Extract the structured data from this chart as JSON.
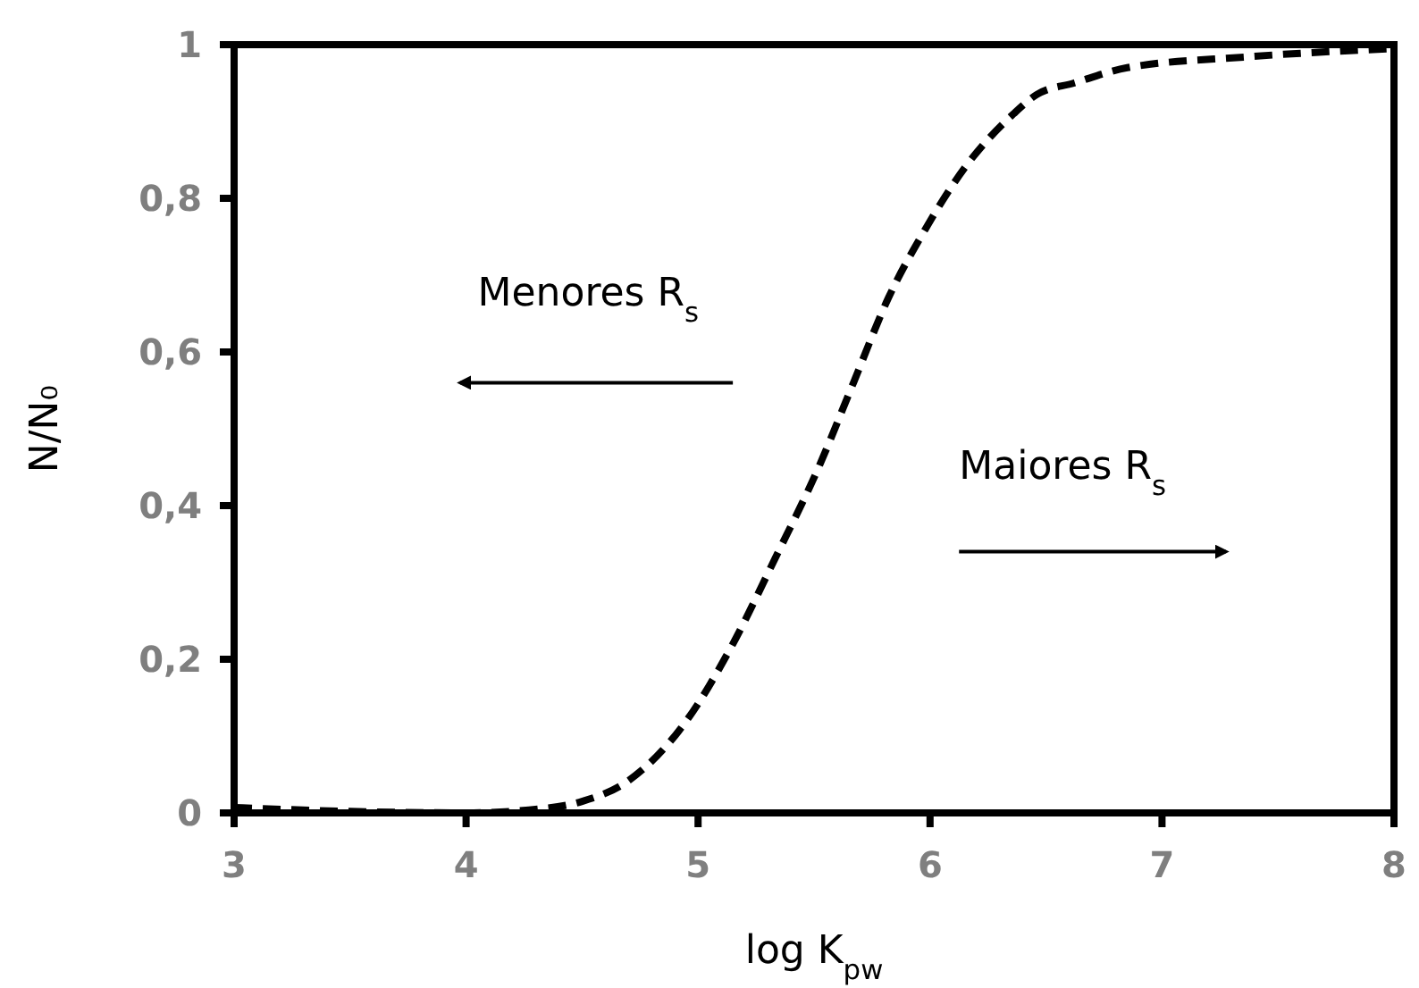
{
  "chart_data": {
    "type": "line",
    "xlabel": "log K$_{pw}$",
    "ylabel": "N/N₀",
    "x": [
      3,
      3.5,
      4,
      4.31,
      4.5,
      4.69,
      4.95,
      5.15,
      5.33,
      5.52,
      5.67,
      5.82,
      5.98,
      6.15,
      6.36,
      6.46,
      6.62,
      6.85,
      7.36,
      8
    ],
    "series": [
      {
        "color": "#000000",
        "values": [
          0.007,
          0.002,
          0,
          0.005,
          0.015,
          0.04,
          0.12,
          0.22,
          0.33,
          0.45,
          0.56,
          0.67,
          0.76,
          0.84,
          0.91,
          0.935,
          0.95,
          0.97,
          0.984,
          0.995
        ]
      }
    ],
    "xlim": [
      3,
      8
    ],
    "ylim": [
      0,
      1
    ],
    "xticks": [
      3,
      4,
      5,
      6,
      7,
      8
    ],
    "yticks": [
      0,
      {
        "value": 0.2,
        "label": "0,2"
      },
      {
        "value": 0.4,
        "label": "0,4"
      },
      {
        "value": 0.6,
        "label": "0,6"
      },
      {
        "value": 0.8,
        "label": "0,8"
      },
      1
    ],
    "annotations": [
      "Menores R$_{s}$",
      "Maiores R$_{s}$"
    ],
    "marker": "none",
    "line_style": "dashed"
  }
}
